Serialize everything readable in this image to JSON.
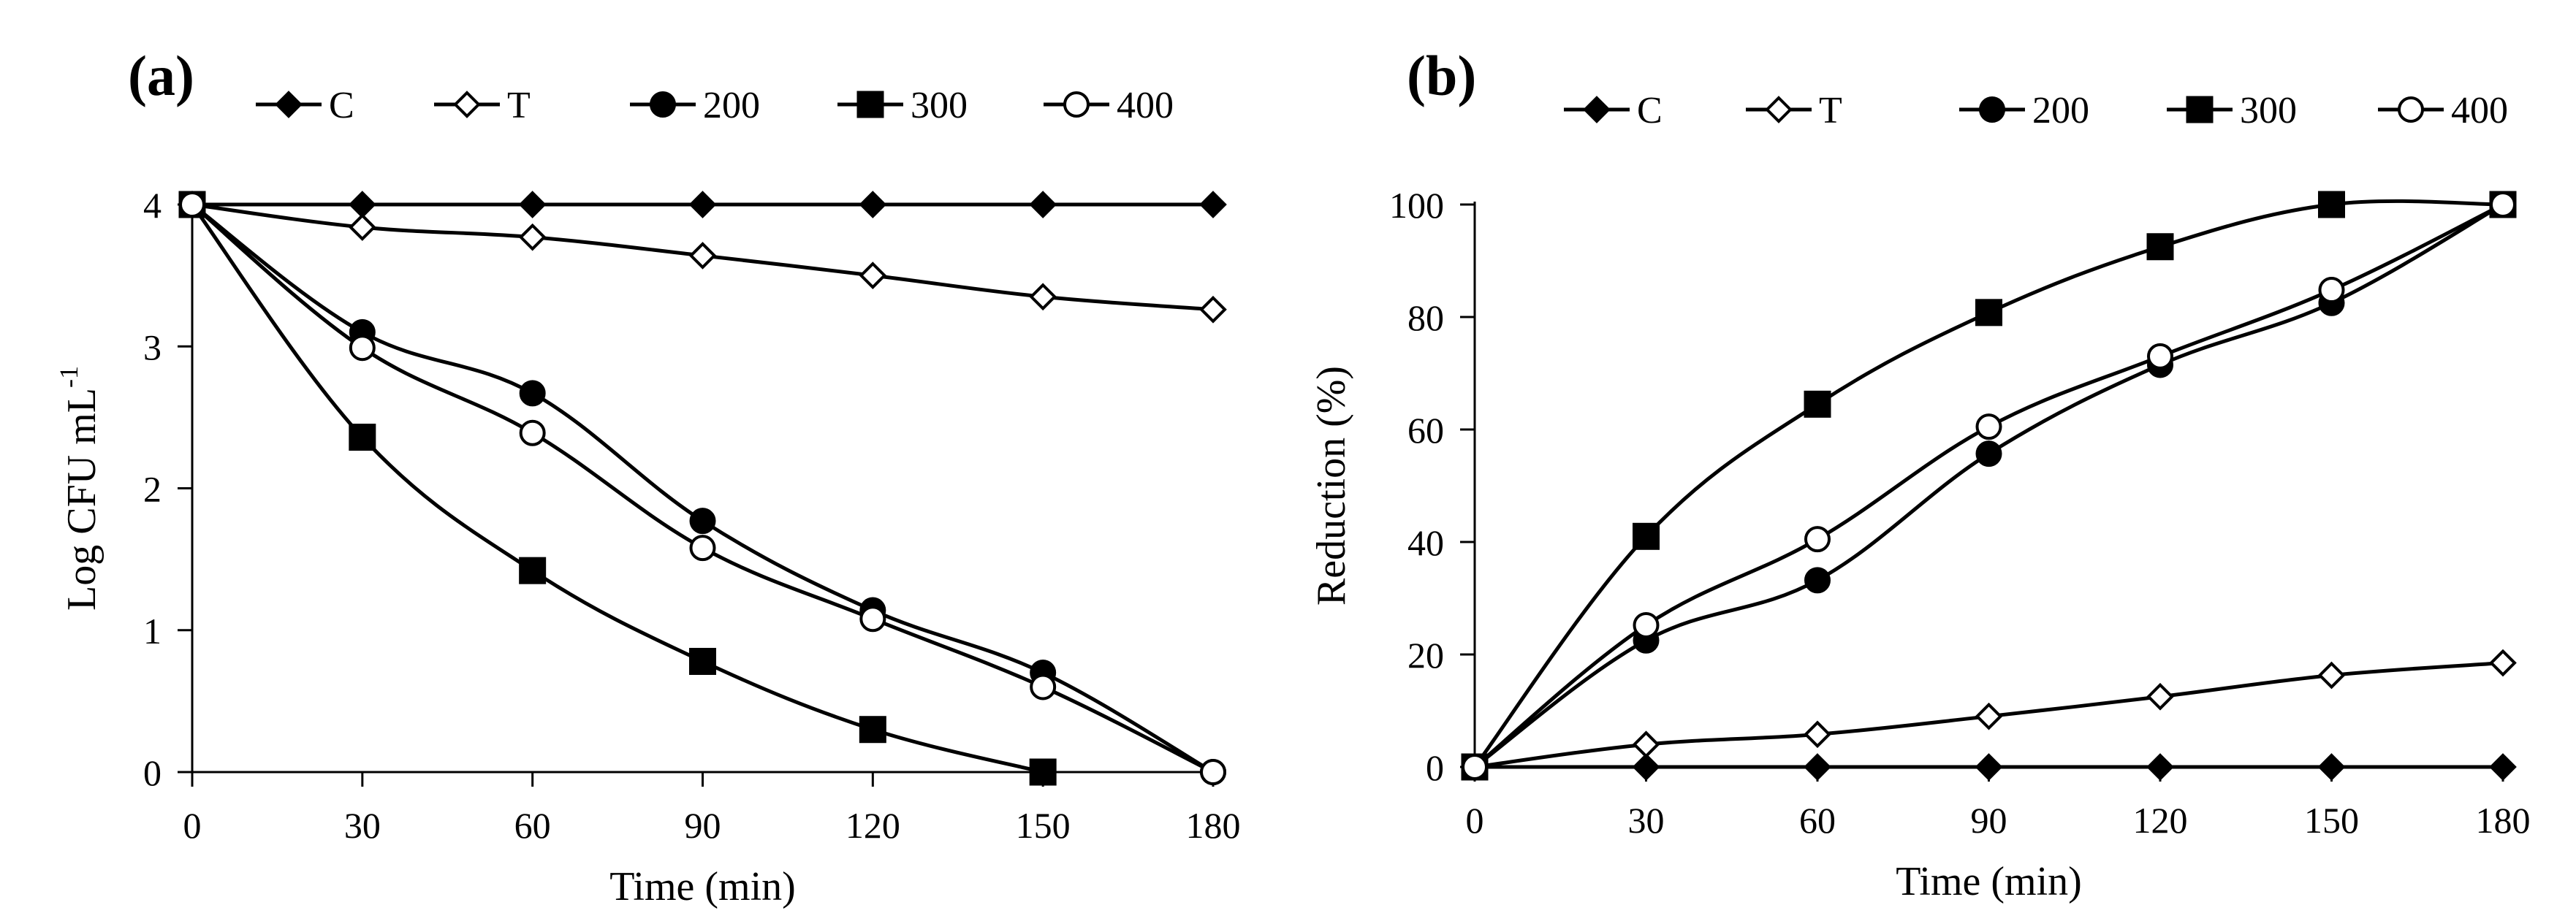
{
  "chart_data": [
    {
      "panel": "(a)",
      "type": "line",
      "xlabel": "Time (min)",
      "ylabel_main": "Log CFU mL",
      "ylabel_sup": "-1",
      "x": [
        0,
        30,
        60,
        90,
        120,
        150,
        180
      ],
      "x_tick_labels": [
        "0",
        "30",
        "60",
        "90",
        "120",
        "150",
        "180"
      ],
      "y_tick_labels": [
        "0",
        "1",
        "2",
        "3",
        "4"
      ],
      "y_ticks": [
        0,
        1,
        2,
        3,
        4
      ],
      "xlim": [
        0,
        180
      ],
      "ylim": [
        0,
        4
      ],
      "legend_position": "top",
      "series": [
        {
          "name": "C",
          "marker": "diamond-filled",
          "values": [
            4,
            4,
            4,
            4,
            4,
            4,
            4
          ]
        },
        {
          "name": "T",
          "marker": "diamond-open",
          "values": [
            4,
            3.84,
            3.77,
            3.64,
            3.5,
            3.35,
            3.26
          ]
        },
        {
          "name": "200",
          "marker": "circle-filled",
          "values": [
            4,
            3.1,
            2.67,
            1.77,
            1.14,
            0.7,
            0
          ]
        },
        {
          "name": "300",
          "marker": "square-filled",
          "values": [
            4,
            2.36,
            1.42,
            0.78,
            0.3,
            0,
            null
          ]
        },
        {
          "name": "400",
          "marker": "circle-open",
          "values": [
            4,
            2.99,
            2.39,
            1.58,
            1.08,
            0.6,
            0
          ]
        }
      ]
    },
    {
      "panel": "(b)",
      "type": "line",
      "xlabel": "Time (min)",
      "ylabel_main": "Reduction (%)",
      "ylabel_sup": "",
      "x": [
        0,
        30,
        60,
        90,
        120,
        150,
        180
      ],
      "x_tick_labels": [
        "0",
        "30",
        "60",
        "90",
        "120",
        "150",
        "180"
      ],
      "y_tick_labels": [
        "0",
        "20",
        "40",
        "60",
        "80",
        "100"
      ],
      "y_ticks": [
        0,
        20,
        40,
        60,
        80,
        100
      ],
      "xlim": [
        0,
        180
      ],
      "ylim": [
        0,
        100
      ],
      "legend_position": "top",
      "series": [
        {
          "name": "C",
          "marker": "diamond-filled",
          "values": [
            0,
            0,
            0,
            0,
            0,
            0,
            0
          ]
        },
        {
          "name": "T",
          "marker": "diamond-open",
          "values": [
            0,
            4,
            5.8,
            9,
            12.5,
            16.3,
            18.5
          ]
        },
        {
          "name": "200",
          "marker": "circle-filled",
          "values": [
            0,
            22.5,
            33.2,
            55.7,
            71.5,
            82.5,
            100
          ]
        },
        {
          "name": "300",
          "marker": "square-filled",
          "values": [
            0,
            41,
            64.5,
            80.8,
            92.5,
            100,
            100
          ]
        },
        {
          "name": "400",
          "marker": "circle-open",
          "values": [
            0,
            25.2,
            40.5,
            60.5,
            73,
            84.8,
            100
          ]
        }
      ]
    }
  ]
}
